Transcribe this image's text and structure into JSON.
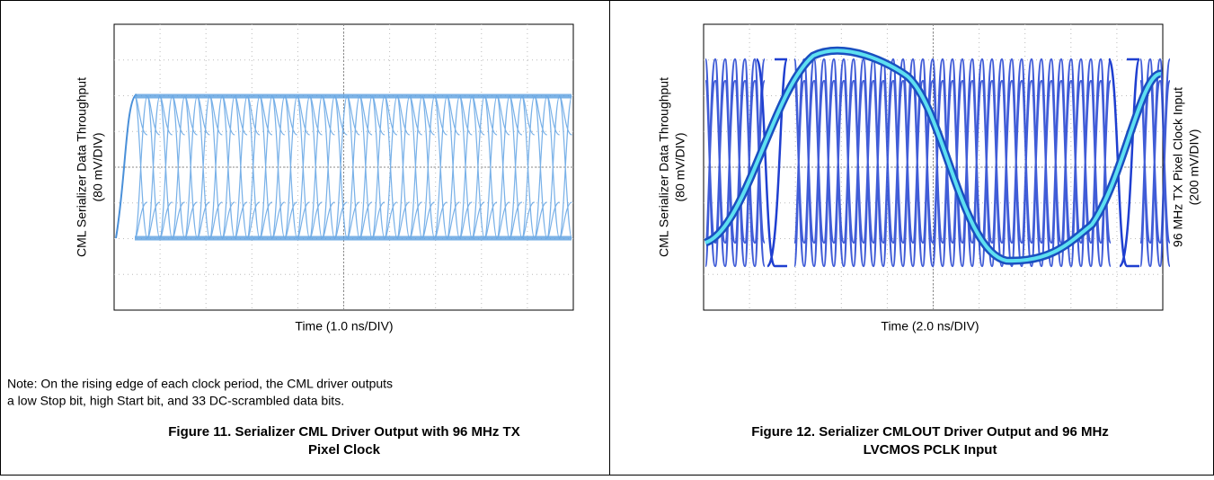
{
  "figures": [
    {
      "y_label": [
        "CML Serializer Data Throughput",
        "(80 mV/DIV)"
      ],
      "x_label": "Time (1.0 ns/DIV)",
      "note": [
        "Note: On the rising edge of each clock period, the CML driver outputs",
        "a low Stop bit, high Start bit, and 33 DC-scrambled data bits."
      ],
      "caption": [
        "Figure 11. Serializer CML Driver Output with 96 MHz TX",
        "Pixel Clock"
      ]
    },
    {
      "y_label": [
        "CML Serializer Data Throughput",
        "(80 mV/DIV)"
      ],
      "y2_label": [
        "96 MHz TX Pixel Clock Input",
        "(200 mV/DIV)"
      ],
      "x_label": "Time (2.0 ns/DIV)",
      "caption": [
        "Figure 12. Serializer CMLOUT Driver Output and 96 MHz",
        "LVCMOS PCLK Input"
      ]
    }
  ]
}
